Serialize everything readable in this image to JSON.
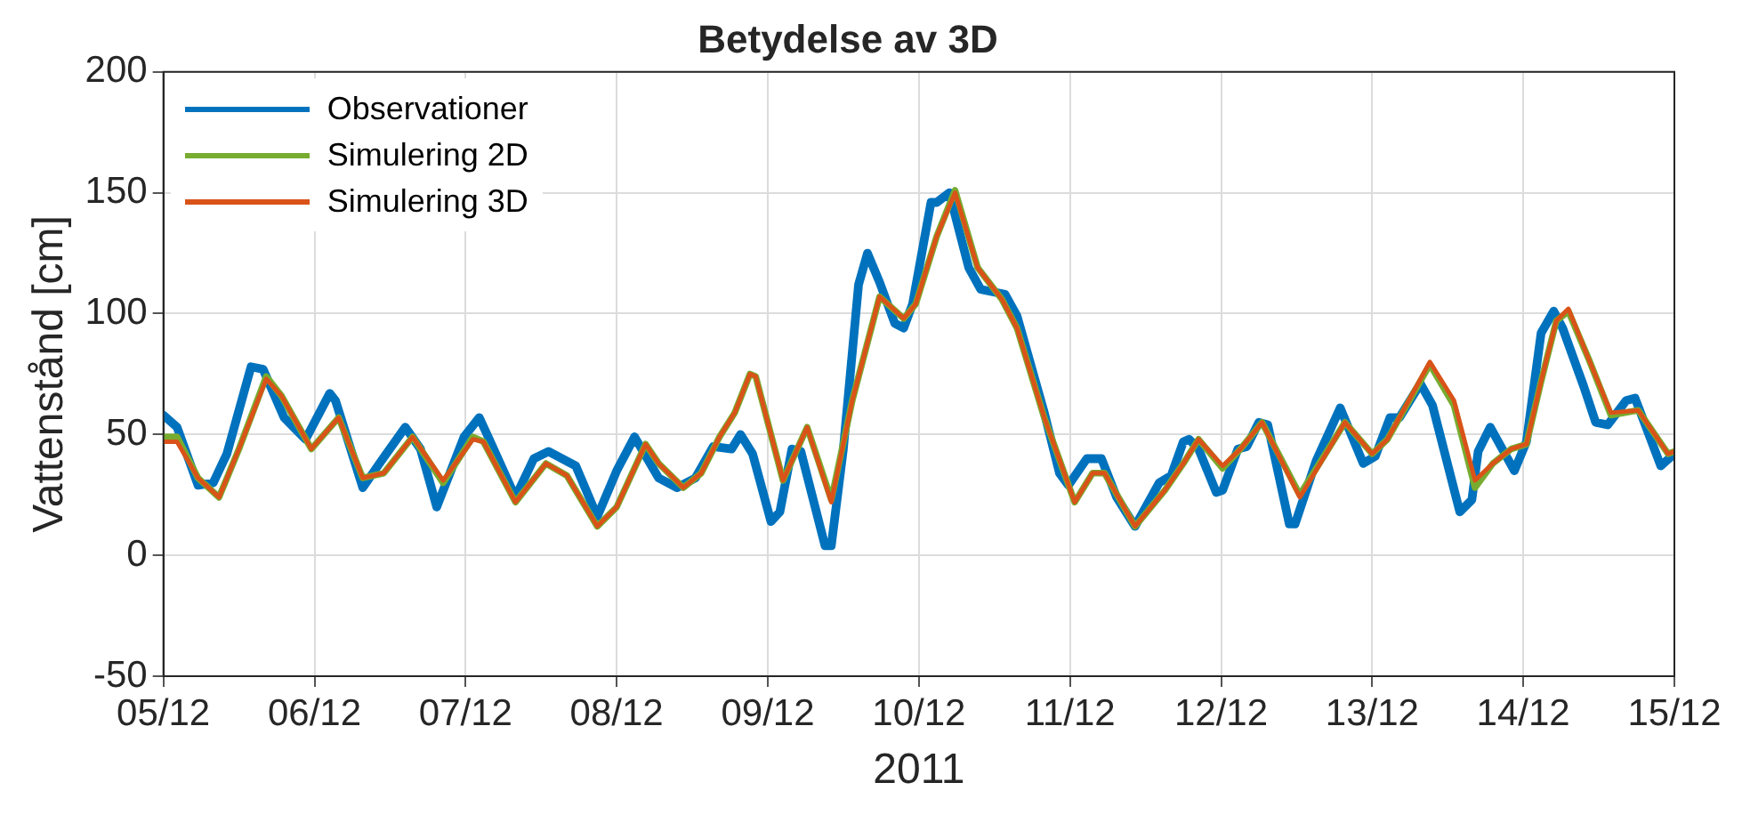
{
  "chart_data": {
    "type": "line",
    "title": "Betydelse av 3D",
    "xlabel": "2011",
    "ylabel": "Vattenstånd [cm]",
    "xlim": [
      "2011-12-05",
      "2011-12-15"
    ],
    "xticks": [
      {
        "value": "2011-12-05",
        "label": "05/12"
      },
      {
        "value": "2011-12-06",
        "label": "06/12"
      },
      {
        "value": "2011-12-07",
        "label": "07/12"
      },
      {
        "value": "2011-12-08",
        "label": "08/12"
      },
      {
        "value": "2011-12-09",
        "label": "09/12"
      },
      {
        "value": "2011-12-10",
        "label": "10/12"
      },
      {
        "value": "2011-12-11",
        "label": "11/12"
      },
      {
        "value": "2011-12-12",
        "label": "12/12"
      },
      {
        "value": "2011-12-13",
        "label": "13/12"
      },
      {
        "value": "2011-12-14",
        "label": "14/12"
      },
      {
        "value": "2011-12-15",
        "label": "15/12"
      }
    ],
    "ylim": [
      -50,
      200
    ],
    "yticks": [
      -50,
      0,
      50,
      100,
      150,
      200
    ],
    "grid": true,
    "legend": "top left",
    "line_style": "solid",
    "marker": "none",
    "series": [
      {
        "name": "Observationer",
        "color": "#0072bd",
        "x": [
          "2011-12-05T00:00",
          "2011-12-05T02:10",
          "2011-12-05T05:30",
          "2011-12-05T07:55",
          "2011-12-05T10:05",
          "2011-12-05T13:55",
          "2011-12-05T15:50",
          "2011-12-05T19:10",
          "2011-12-05T22:35",
          "2011-12-06T02:25",
          "2011-12-06T03:20",
          "2011-12-06T07:40",
          "2011-12-06T10:35",
          "2011-12-06T14:25",
          "2011-12-06T16:50",
          "2011-12-06T19:25",
          "2011-12-06T23:45",
          "2011-12-07T02:10",
          "2011-12-07T03:35",
          "2011-12-07T07:55",
          "2011-12-07T10:50",
          "2011-12-07T13:10",
          "2011-12-07T17:30",
          "2011-12-07T20:55",
          "2011-12-08T00:00",
          "2011-12-08T02:50",
          "2011-12-08T06:40",
          "2011-12-08T09:35",
          "2011-12-08T12:30",
          "2011-12-08T15:20",
          "2011-12-08T18:15",
          "2011-12-08T19:40",
          "2011-12-08T21:35",
          "2011-12-09T00:30",
          "2011-12-09T01:55",
          "2011-12-09T03:50",
          "2011-12-09T05:15",
          "2011-12-09T09:05",
          "2011-12-09T10:05",
          "2011-12-09T12:00",
          "2011-12-09T14:25",
          "2011-12-09T15:50",
          "2011-12-09T17:45",
          "2011-12-09T20:10",
          "2011-12-09T21:35",
          "2011-12-09T23:00",
          "2011-12-10T01:55",
          "2011-12-10T02:50",
          "2011-12-10T04:50",
          "2011-12-10T07:55",
          "2011-12-10T09:50",
          "2011-12-10T11:45",
          "2011-12-10T13:40",
          "2011-12-10T15:35",
          "2011-12-10T19:55",
          "2011-12-10T22:20",
          "2011-12-10T23:45",
          "2011-12-11T02:40",
          "2011-12-11T05:00",
          "2011-12-11T07:25",
          "2011-12-11T10:20",
          "2011-12-11T14:10",
          "2011-12-11T16:05",
          "2011-12-11T18:00",
          "2011-12-11T18:55",
          "2011-12-11T20:25",
          "2011-12-11T23:15",
          "2011-12-12T00:15",
          "2011-12-12T02:40",
          "2011-12-12T04:05",
          "2011-12-12T06:00",
          "2011-12-12T07:25",
          "2011-12-12T10:50",
          "2011-12-12T11:45",
          "2011-12-12T15:05",
          "2011-12-12T18:55",
          "2011-12-12T22:35",
          "2011-12-13T00:30",
          "2011-12-13T02:50",
          "2011-12-13T04:20",
          "2011-12-13T07:40",
          "2011-12-13T09:35",
          "2011-12-13T13:55",
          "2011-12-13T15:50",
          "2011-12-13T16:50",
          "2011-12-13T18:45",
          "2011-12-13T22:35",
          "2011-12-14T00:30",
          "2011-12-14T02:50",
          "2011-12-14T04:50",
          "2011-12-14T06:15",
          "2011-12-14T09:35",
          "2011-12-14T11:30",
          "2011-12-14T13:25",
          "2011-12-14T16:20",
          "2011-12-14T17:45",
          "2011-12-14T19:40",
          "2011-12-14T21:50",
          "2011-12-15T00:00"
        ],
        "values": [
          58,
          53,
          29,
          30,
          42,
          78,
          77,
          57,
          48,
          67,
          64,
          28,
          39,
          53,
          44,
          20,
          49,
          57,
          49,
          24,
          40,
          43,
          37,
          16,
          35,
          49,
          32,
          28,
          32,
          45,
          44,
          50,
          42,
          14,
          18,
          44,
          43,
          4,
          4,
          44,
          112,
          125,
          113,
          96,
          94,
          104,
          146,
          146,
          150,
          119,
          110,
          109,
          108,
          99,
          59,
          34,
          29,
          40,
          40,
          24,
          12,
          30,
          33,
          47,
          48,
          44,
          26,
          27,
          44,
          45,
          55,
          54,
          13,
          13,
          39,
          61,
          38,
          41,
          57,
          57,
          71,
          62,
          18,
          23,
          43,
          53,
          35,
          47,
          92,
          101,
          94,
          70,
          55,
          54,
          64,
          65,
          52,
          37,
          42
        ]
      },
      {
        "name": "Simulering 2D",
        "color": "#77ac30",
        "x": [
          "2011-12-05T00:00",
          "2011-12-05T02:10",
          "2011-12-05T05:30",
          "2011-12-05T08:50",
          "2011-12-05T12:00",
          "2011-12-05T16:20",
          "2011-12-05T18:45",
          "2011-12-05T23:30",
          "2011-12-06T03:50",
          "2011-12-06T07:40",
          "2011-12-06T11:00",
          "2011-12-06T15:35",
          "2011-12-06T20:25",
          "2011-12-07T01:10",
          "2011-12-07T02:50",
          "2011-12-07T07:55",
          "2011-12-07T12:45",
          "2011-12-07T16:05",
          "2011-12-07T20:55",
          "2011-12-08T00:00",
          "2011-12-08T04:35",
          "2011-12-08T06:40",
          "2011-12-08T10:35",
          "2011-12-08T13:25",
          "2011-12-08T16:20",
          "2011-12-08T18:45",
          "2011-12-08T21:10",
          "2011-12-08T22:05",
          "2011-12-09T02:25",
          "2011-12-09T06:15",
          "2011-12-09T10:05",
          "2011-12-09T13:25",
          "2011-12-09T17:45",
          "2011-12-09T21:35",
          "2011-12-09T23:30",
          "2011-12-10T02:50",
          "2011-12-10T05:45",
          "2011-12-10T09:20",
          "2011-12-10T13:10",
          "2011-12-10T15:35",
          "2011-12-10T19:55",
          "2011-12-11T00:45",
          "2011-12-11T03:35",
          "2011-12-11T05:30",
          "2011-12-11T10:20",
          "2011-12-11T15:05",
          "2011-12-11T18:00",
          "2011-12-11T20:25",
          "2011-12-12T00:15",
          "2011-12-12T03:05",
          "2011-12-12T06:30",
          "2011-12-12T12:30",
          "2011-12-12T19:40",
          "2011-12-13T00:00",
          "2011-12-13T02:25",
          "2011-12-13T09:10",
          "2011-12-13T13:00",
          "2011-12-13T16:20",
          "2011-12-13T19:10",
          "2011-12-13T22:05",
          "2011-12-14T00:30",
          "2011-12-14T02:50",
          "2011-12-14T05:15",
          "2011-12-14T07:10",
          "2011-12-14T10:35",
          "2011-12-14T13:55",
          "2011-12-14T18:15",
          "2011-12-14T23:00",
          "2011-12-15T00:00"
        ],
        "values": [
          49,
          49,
          32,
          24,
          44,
          74,
          66,
          44,
          57,
          32,
          34,
          49,
          30,
          49,
          47,
          22,
          38,
          33,
          12,
          20,
          46,
          38,
          28,
          34,
          49,
          59,
          75,
          74,
          31,
          53,
          23,
          64,
          107,
          98,
          104,
          132,
          151,
          119,
          106,
          94,
          57,
          22,
          34,
          34,
          12,
          27,
          38,
          48,
          36,
          44,
          55,
          25,
          55,
          42,
          48,
          79,
          62,
          28,
          38,
          44,
          46,
          72,
          97,
          101,
          80,
          58,
          60,
          42,
          43
        ]
      },
      {
        "name": "Simulering 3D",
        "color": "#d95319",
        "x": [
          "2011-12-05T00:00",
          "2011-12-05T02:10",
          "2011-12-05T05:30",
          "2011-12-05T08:50",
          "2011-12-05T12:00",
          "2011-12-05T16:20",
          "2011-12-05T18:45",
          "2011-12-05T23:30",
          "2011-12-06T03:50",
          "2011-12-06T07:40",
          "2011-12-06T11:00",
          "2011-12-06T15:35",
          "2011-12-06T20:25",
          "2011-12-07T01:10",
          "2011-12-07T02:50",
          "2011-12-07T07:55",
          "2011-12-07T12:45",
          "2011-12-07T16:05",
          "2011-12-07T20:55",
          "2011-12-08T00:00",
          "2011-12-08T04:35",
          "2011-12-08T06:40",
          "2011-12-08T10:35",
          "2011-12-08T13:25",
          "2011-12-08T16:20",
          "2011-12-08T18:45",
          "2011-12-08T21:10",
          "2011-12-08T22:05",
          "2011-12-09T02:25",
          "2011-12-09T06:15",
          "2011-12-09T10:05",
          "2011-12-09T13:25",
          "2011-12-09T17:45",
          "2011-12-09T21:35",
          "2011-12-09T23:30",
          "2011-12-10T02:50",
          "2011-12-10T05:45",
          "2011-12-10T09:20",
          "2011-12-10T13:10",
          "2011-12-10T15:35",
          "2011-12-10T19:55",
          "2011-12-11T00:45",
          "2011-12-11T03:35",
          "2011-12-11T05:30",
          "2011-12-11T10:20",
          "2011-12-11T15:05",
          "2011-12-11T18:00",
          "2011-12-11T20:25",
          "2011-12-12T00:15",
          "2011-12-12T03:05",
          "2011-12-12T06:30",
          "2011-12-12T12:30",
          "2011-12-12T19:40",
          "2011-12-13T00:00",
          "2011-12-13T02:25",
          "2011-12-13T09:10",
          "2011-12-13T13:00",
          "2011-12-13T16:20",
          "2011-12-13T19:10",
          "2011-12-13T22:05",
          "2011-12-14T00:30",
          "2011-12-14T02:50",
          "2011-12-14T05:15",
          "2011-12-14T07:10",
          "2011-12-14T10:35",
          "2011-12-14T13:55",
          "2011-12-14T18:15",
          "2011-12-14T23:00",
          "2011-12-15T00:00"
        ],
        "values": [
          47,
          47,
          32,
          24,
          44,
          73,
          66,
          44,
          57,
          32,
          34,
          49,
          31,
          48,
          47,
          22,
          38,
          33,
          12,
          20,
          46,
          38,
          28,
          34,
          49,
          59,
          75,
          74,
          31,
          53,
          22,
          64,
          107,
          98,
          104,
          132,
          150,
          119,
          106,
          94,
          57,
          22,
          34,
          34,
          12,
          27,
          38,
          48,
          37,
          44,
          55,
          24,
          55,
          42,
          48,
          80,
          64,
          31,
          38,
          44,
          46,
          72,
          97,
          102,
          80,
          59,
          60,
          42,
          43
        ]
      }
    ]
  }
}
